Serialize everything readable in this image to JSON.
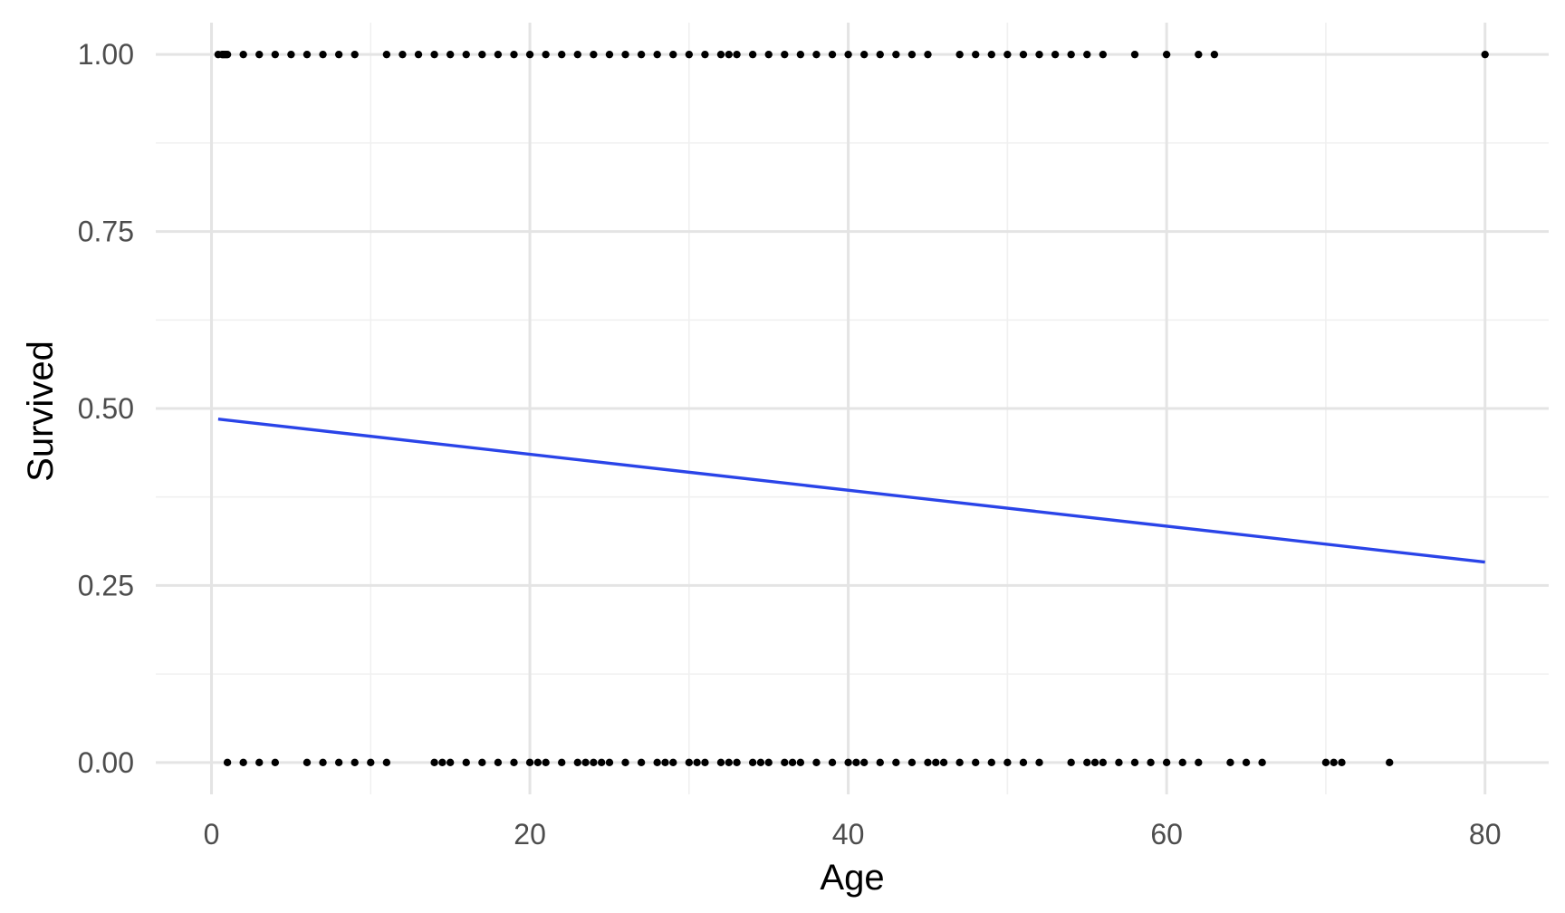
{
  "chart_data": {
    "type": "scatter",
    "title": "",
    "xlabel": "Age",
    "ylabel": "Survived",
    "xlim": [
      -3.5,
      84
    ],
    "ylim": [
      -0.045,
      1.045
    ],
    "x_ticks": [
      0,
      20,
      40,
      60,
      80
    ],
    "x_tick_labels": [
      "0",
      "20",
      "40",
      "60",
      "80"
    ],
    "y_ticks": [
      0,
      0.25,
      0.5,
      0.75,
      1
    ],
    "y_tick_labels": [
      "0.00",
      "0.25",
      "0.50",
      "0.75",
      "1.00"
    ],
    "grid": true,
    "legend": "none",
    "colors": {
      "points": "#000000",
      "fit_line": "#2a44e8",
      "grid": "#e4e4e4",
      "background": "#ffffff"
    },
    "series": [
      {
        "kind": "points",
        "y": 1,
        "x": [
          0.42,
          0.67,
          0.75,
          0.83,
          0.92,
          1,
          2,
          3,
          4,
          5,
          6,
          7,
          8,
          9,
          11,
          12,
          13,
          14,
          15,
          16,
          17,
          18,
          19,
          20,
          21,
          22,
          23,
          24,
          25,
          26,
          27,
          28,
          29,
          30,
          31,
          32,
          32.5,
          33,
          34,
          35,
          36,
          37,
          38,
          39,
          40,
          41,
          42,
          43,
          44,
          45,
          47,
          48,
          49,
          50,
          51,
          52,
          53,
          54,
          55,
          56,
          58,
          60,
          62,
          63,
          80
        ]
      },
      {
        "kind": "points",
        "y": 0,
        "x": [
          1,
          2,
          3,
          4,
          6,
          7,
          8,
          9,
          10,
          11,
          14,
          14.5,
          15,
          16,
          17,
          18,
          19,
          20,
          20.5,
          21,
          22,
          23,
          23.5,
          24,
          24.5,
          25,
          26,
          27,
          28,
          28.5,
          29,
          30,
          30.5,
          31,
          32,
          32.5,
          33,
          34,
          34.5,
          35,
          36,
          36.5,
          37,
          38,
          39,
          40,
          40.5,
          41,
          42,
          43,
          44,
          45,
          45.5,
          46,
          47,
          48,
          49,
          50,
          51,
          52,
          54,
          55,
          55.5,
          56,
          57,
          58,
          59,
          60,
          61,
          62,
          64,
          65,
          66,
          70,
          70.5,
          71,
          74
        ]
      },
      {
        "kind": "line",
        "x": [
          0.42,
          80
        ],
        "y": [
          0.485,
          0.283
        ]
      }
    ]
  }
}
